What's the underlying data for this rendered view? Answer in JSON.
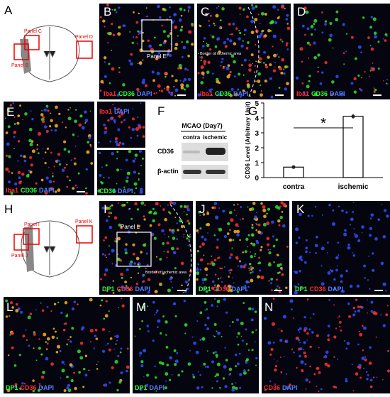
{
  "letters": [
    "A",
    "B",
    "C",
    "D",
    "E",
    "F",
    "G",
    "H",
    "I",
    "J",
    "K",
    "L",
    "M",
    "N"
  ],
  "schematic_top": {
    "labels": [
      "Panel C",
      "Panel D",
      "Panel B"
    ]
  },
  "schematic_bottom": {
    "labels": [
      "Panel I",
      "Panel K",
      "Panel J"
    ]
  },
  "inset_labels": [
    "Panel E",
    "Panel L"
  ],
  "border_labels": [
    "Border of ischemic area",
    "Border of ischemic area"
  ],
  "stains": {
    "B": [
      {
        "text": "Iba1",
        "color": "#ff3030"
      },
      {
        "text": "CD36",
        "color": "#30ff30"
      },
      {
        "text": "DAPI",
        "color": "#5080ff"
      }
    ],
    "C": [
      {
        "text": "Iba1",
        "color": "#ff3030"
      },
      {
        "text": "CD36",
        "color": "#30ff30"
      },
      {
        "text": "DAPI",
        "color": "#5080ff"
      }
    ],
    "D": [
      {
        "text": "Iba1",
        "color": "#ff3030"
      },
      {
        "text": "CD36",
        "color": "#30ff30"
      },
      {
        "text": "DAPI",
        "color": "#5080ff"
      }
    ],
    "E": [
      {
        "text": "Iba1",
        "color": "#ff3030"
      },
      {
        "text": "CD36",
        "color": "#30ff30"
      },
      {
        "text": "DAPI",
        "color": "#5080ff"
      }
    ],
    "E1": [
      {
        "text": "Iba1",
        "color": "#ff3030"
      },
      {
        "text": "DAPI",
        "color": "#5080ff"
      }
    ],
    "E2": [
      {
        "text": "CD36",
        "color": "#30ff30"
      },
      {
        "text": "DAPI",
        "color": "#5080ff"
      }
    ],
    "I": [
      {
        "text": "DP1",
        "color": "#30ff30"
      },
      {
        "text": "CD36",
        "color": "#ff3030"
      },
      {
        "text": "DAPI",
        "color": "#5080ff"
      }
    ],
    "J": [
      {
        "text": "DP1",
        "color": "#30ff30"
      },
      {
        "text": "CD36",
        "color": "#ff3030"
      },
      {
        "text": "DAPI",
        "color": "#5080ff"
      }
    ],
    "K": [
      {
        "text": "DP1",
        "color": "#30ff30"
      },
      {
        "text": "CD36",
        "color": "#ff3030"
      },
      {
        "text": "DAPI",
        "color": "#5080ff"
      }
    ],
    "L": [
      {
        "text": "DP1",
        "color": "#30ff30"
      },
      {
        "text": "CD36",
        "color": "#ff3030"
      },
      {
        "text": "DAPI",
        "color": "#5080ff"
      }
    ],
    "M": [
      {
        "text": "DP1",
        "color": "#30ff30"
      },
      {
        "text": "DAPI",
        "color": "#5080ff"
      }
    ],
    "N": [
      {
        "text": "CD36",
        "color": "#ff3030"
      },
      {
        "text": "DAPI",
        "color": "#5080ff"
      }
    ]
  },
  "blot": {
    "header": "MCAO (Day7)",
    "lanes": [
      "contra",
      "ischemic"
    ],
    "rows": [
      "CD36",
      "β-actin"
    ]
  },
  "chart_data": {
    "type": "bar",
    "y_label": "CD36 Level (Arbitrary Unit)",
    "categories": [
      "contra",
      "ischemic"
    ],
    "values": [
      0.7,
      4.1
    ],
    "errors": [
      0.08,
      0.15
    ],
    "color": "#ffffff",
    "ylim": [
      0,
      5
    ],
    "yticks": [
      0,
      1,
      2,
      3,
      4,
      5
    ],
    "significance": "*"
  }
}
